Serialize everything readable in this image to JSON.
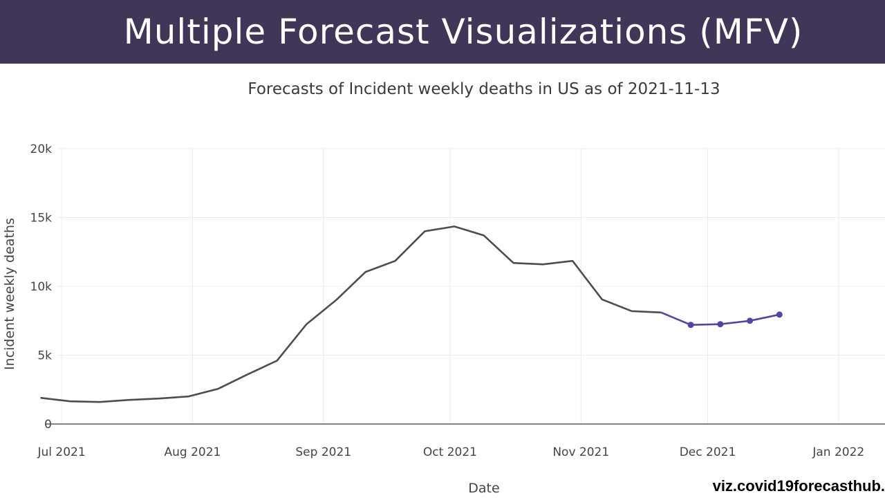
{
  "banner": {
    "title": "Multiple Forecast Visualizations (MFV)"
  },
  "credit": "viz.covid19forecasthub.",
  "chart_data": {
    "type": "line",
    "title": "Forecasts of Incident weekly deaths in US as of 2021-11-13",
    "xlabel": "Date",
    "ylabel": "Incident weekly deaths",
    "ylim": [
      0,
      20000
    ],
    "xlim": [
      "2021-06-30",
      "2022-01-12"
    ],
    "grid": true,
    "y_ticks": [
      {
        "value": 0,
        "label": "0"
      },
      {
        "value": 5000,
        "label": "5k"
      },
      {
        "value": 10000,
        "label": "10k"
      },
      {
        "value": 15000,
        "label": "15k"
      },
      {
        "value": 20000,
        "label": "20k"
      }
    ],
    "x_ticks": [
      {
        "value": "2021-07-01",
        "label": "Jul 2021"
      },
      {
        "value": "2021-08-01",
        "label": "Aug 2021"
      },
      {
        "value": "2021-09-01",
        "label": "Sep 2021"
      },
      {
        "value": "2021-10-01",
        "label": "Oct 2021"
      },
      {
        "value": "2021-11-01",
        "label": "Nov 2021"
      },
      {
        "value": "2021-12-01",
        "label": "Dec 2021"
      },
      {
        "value": "2022-01-01",
        "label": "Jan 2022"
      }
    ],
    "series": [
      {
        "color": "#4d4d4d",
        "markers": false,
        "points": [
          {
            "x": "2021-06-26",
            "y": 1900
          },
          {
            "x": "2021-07-03",
            "y": 1650
          },
          {
            "x": "2021-07-10",
            "y": 1600
          },
          {
            "x": "2021-07-17",
            "y": 1750
          },
          {
            "x": "2021-07-24",
            "y": 1850
          },
          {
            "x": "2021-07-31",
            "y": 2000
          },
          {
            "x": "2021-08-07",
            "y": 2550
          },
          {
            "x": "2021-08-14",
            "y": 3600
          },
          {
            "x": "2021-08-21",
            "y": 4600
          },
          {
            "x": "2021-08-28",
            "y": 7250
          },
          {
            "x": "2021-09-04",
            "y": 9000
          },
          {
            "x": "2021-09-11",
            "y": 11050
          },
          {
            "x": "2021-09-18",
            "y": 11850
          },
          {
            "x": "2021-09-25",
            "y": 14000
          },
          {
            "x": "2021-10-02",
            "y": 14350
          },
          {
            "x": "2021-10-09",
            "y": 13700
          },
          {
            "x": "2021-10-16",
            "y": 11700
          },
          {
            "x": "2021-10-23",
            "y": 11600
          },
          {
            "x": "2021-10-30",
            "y": 11850
          },
          {
            "x": "2021-11-06",
            "y": 9050
          },
          {
            "x": "2021-11-13",
            "y": 8200
          },
          {
            "x": "2021-11-20",
            "y": 8100
          }
        ]
      },
      {
        "color": "#5048a0",
        "markers": true,
        "points": [
          {
            "x": "2021-11-20",
            "y": 8100
          },
          {
            "x": "2021-11-27",
            "y": 7200
          },
          {
            "x": "2021-12-04",
            "y": 7250
          },
          {
            "x": "2021-12-11",
            "y": 7500
          },
          {
            "x": "2021-12-18",
            "y": 7950
          }
        ]
      }
    ]
  }
}
